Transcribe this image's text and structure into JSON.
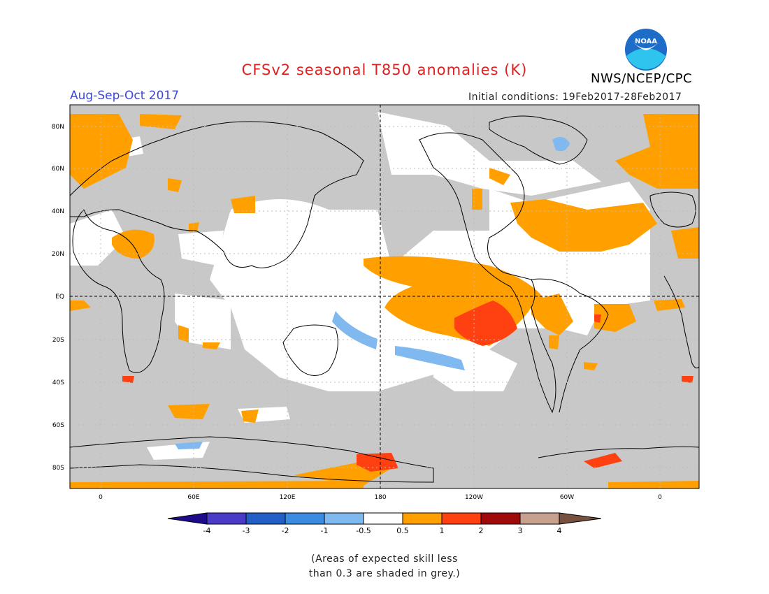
{
  "title": "CFSv2 seasonal T850 anomalies (K)",
  "season": "Aug-Sep-Oct 2017",
  "initial_conditions": "Initial conditions: 19Feb2017-28Feb2017",
  "agency": "NWS/NCEP/CPC",
  "logo_text": "NOAA",
  "note_line1": "(Areas of expected skill less",
  "note_line2": "than 0.3 are shaded in grey.)",
  "map": {
    "lat_labels": [
      "80N",
      "60N",
      "40N",
      "20N",
      "EQ",
      "20S",
      "40S",
      "60S",
      "80S"
    ],
    "lon_labels": [
      "0",
      "60E",
      "120E",
      "180",
      "120W",
      "60W",
      "0"
    ],
    "colors": {
      "low_skill_grey": "#c8c8c8",
      "ocean_white": "#ffffff",
      "warm_0_5_to_1": "#ffa000",
      "warm_1_to_2": "#ff4010",
      "cool_minus1_to_minus0_5": "#80b8f0",
      "coastline": "#000000"
    }
  },
  "colorbar": {
    "tick_labels": [
      "-4",
      "-3",
      "-2",
      "-1",
      "-0.5",
      "0.5",
      "1",
      "2",
      "3",
      "4"
    ],
    "colors": [
      "#1e0a8c",
      "#4a3cc8",
      "#2260c8",
      "#3a8ce0",
      "#80b8f0",
      "#ffffff",
      "#ffa000",
      "#ff4010",
      "#a00a0a",
      "#c8a090",
      "#785040"
    ]
  }
}
